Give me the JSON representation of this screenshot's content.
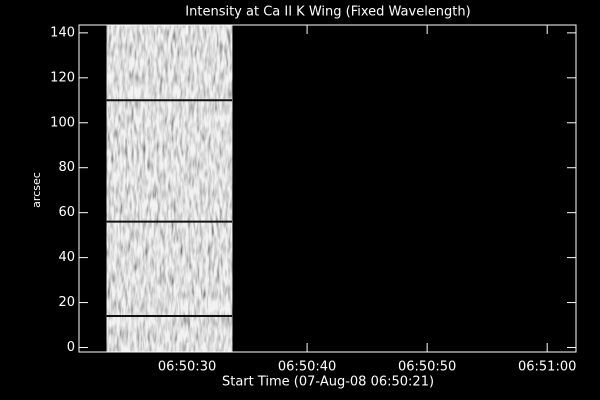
{
  "chart_data": {
    "type": "image",
    "title": "Intensity at Ca II K Wing (Fixed Wavelength)",
    "x_label": "Start Time (07-Aug-08 06:50:21)",
    "y_label": "arcsec",
    "xlim": [
      0,
      41.4
    ],
    "xticks": [
      {
        "value": 9,
        "label": "06:50:30"
      },
      {
        "value": 19,
        "label": "06:50:40"
      },
      {
        "value": 29,
        "label": "06:50:50"
      },
      {
        "value": 39,
        "label": "06:51:00"
      }
    ],
    "ylim": [
      -2,
      143.5
    ],
    "yticks": [
      0,
      20,
      40,
      60,
      80,
      100,
      120,
      140
    ],
    "image": {
      "x_range": [
        2.3,
        12.75
      ],
      "y_range": [
        -2,
        143.5
      ],
      "dark_rows": [
        14,
        56,
        110
      ]
    },
    "background": "#000000",
    "foreground": "#ffffff"
  }
}
